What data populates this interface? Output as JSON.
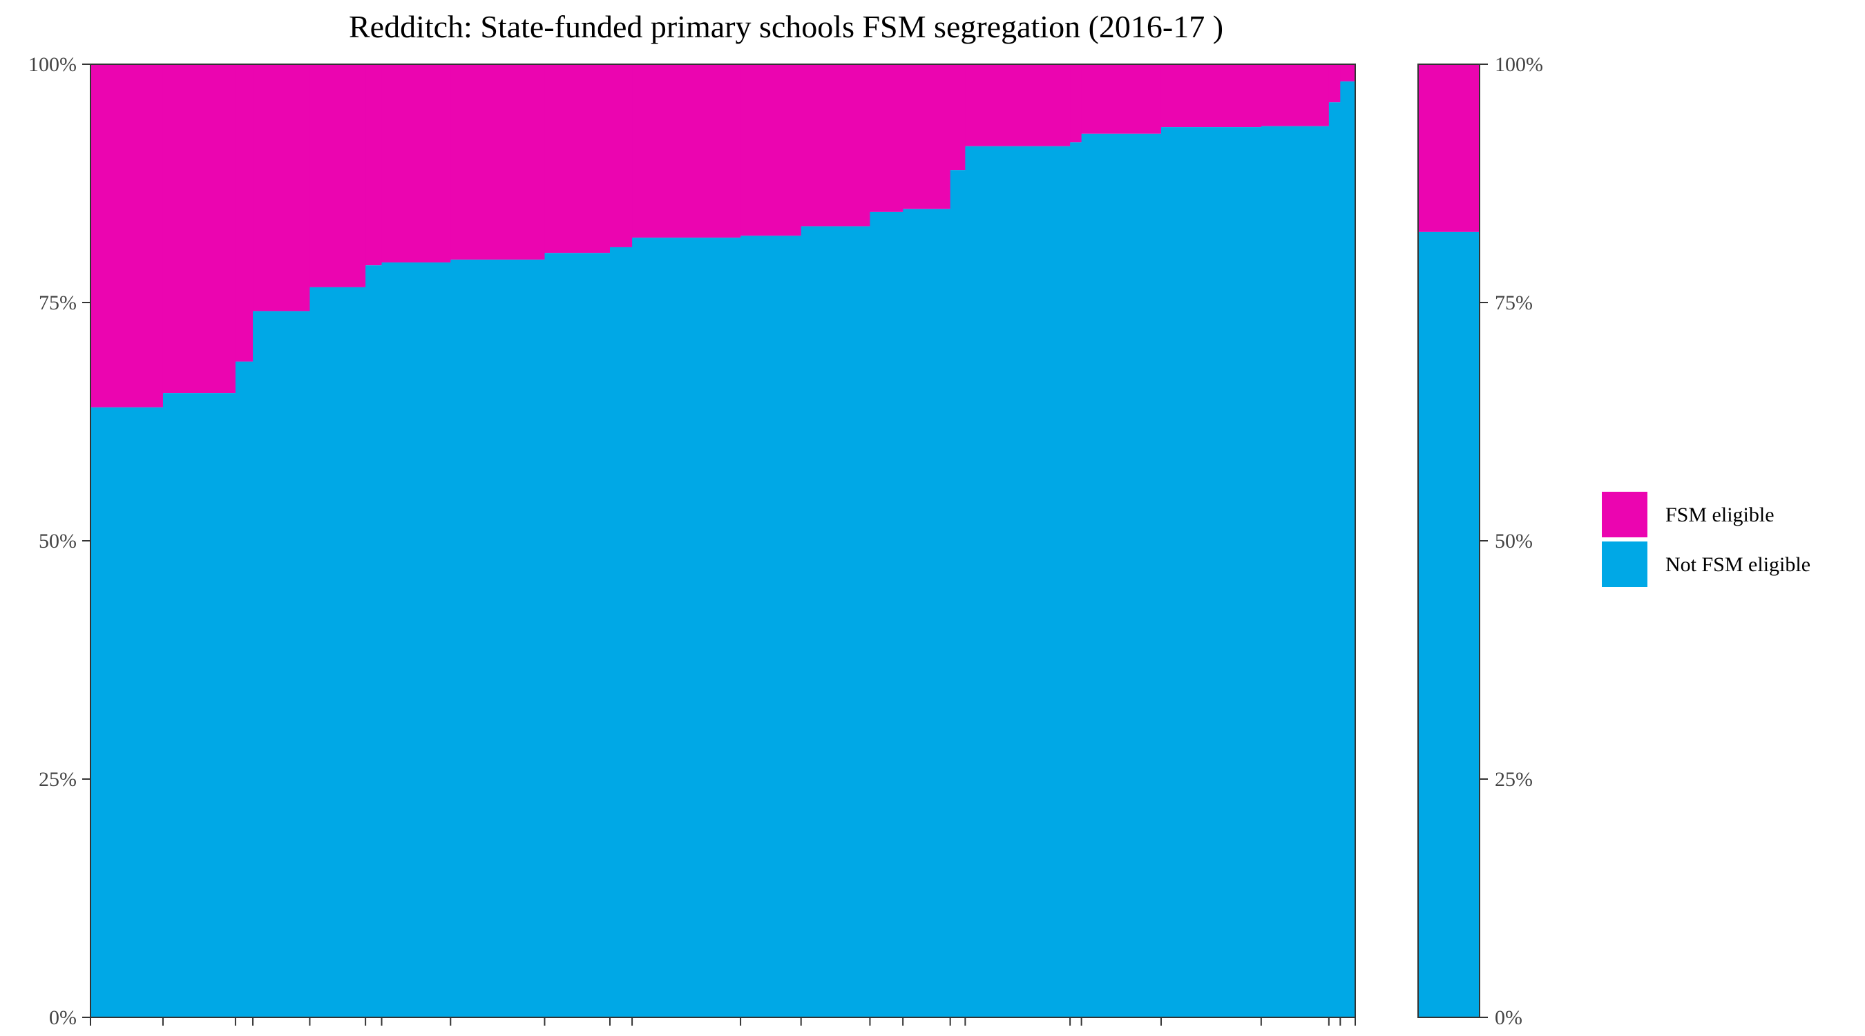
{
  "colors": {
    "fsm": "#EB05B0",
    "not_fsm": "#00A8E6",
    "axis": "#333333",
    "background": "#FFFFFF"
  },
  "chart_data": {
    "type": "bar",
    "subtype": "stacked-mosaic",
    "title": "Redditch: State-funded primary schools FSM segregation (2016-17 )",
    "xlabel": "",
    "ylabel": "",
    "ylim": [
      0,
      1
    ],
    "y_ticks": [
      "0%",
      "25%",
      "50%",
      "75%",
      "100%"
    ],
    "grid": false,
    "legend_position": "right",
    "series": [
      {
        "name": "FSM eligible",
        "color": "#EB05B0"
      },
      {
        "name": "Not FSM eligible",
        "color": "#00A8E6"
      }
    ],
    "schools": [
      {
        "w": 60.5,
        "not_fsm": 0.64
      },
      {
        "w": 60.5,
        "not_fsm": 0.655
      },
      {
        "w": 14.5,
        "not_fsm": 0.688
      },
      {
        "w": 47.5,
        "not_fsm": 0.741
      },
      {
        "w": 46.5,
        "not_fsm": 0.766
      },
      {
        "w": 13.5,
        "not_fsm": 0.789
      },
      {
        "w": 57.5,
        "not_fsm": 0.792
      },
      {
        "w": 78.5,
        "not_fsm": 0.795
      },
      {
        "w": 54.5,
        "not_fsm": 0.802
      },
      {
        "w": 18.5,
        "not_fsm": 0.808
      },
      {
        "w": 90.5,
        "not_fsm": 0.818
      },
      {
        "w": 50.5,
        "not_fsm": 0.82
      },
      {
        "w": 57.5,
        "not_fsm": 0.83
      },
      {
        "w": 27.5,
        "not_fsm": 0.845
      },
      {
        "w": 39.5,
        "not_fsm": 0.848
      },
      {
        "w": 12.5,
        "not_fsm": 0.889
      },
      {
        "w": 87.5,
        "not_fsm": 0.914
      },
      {
        "w": 9.5,
        "not_fsm": 0.918
      },
      {
        "w": 66.5,
        "not_fsm": 0.927
      },
      {
        "w": 83.5,
        "not_fsm": 0.934
      },
      {
        "w": 56.5,
        "not_fsm": 0.935
      },
      {
        "w": 9.5,
        "not_fsm": 0.96
      },
      {
        "w": 12.5,
        "not_fsm": 0.982
      }
    ],
    "total_bar": {
      "not_fsm": 0.824
    }
  },
  "legend": {
    "items": [
      {
        "label": "FSM eligible",
        "color": "#EB05B0"
      },
      {
        "label": "Not FSM eligible",
        "color": "#00A8E6"
      }
    ]
  }
}
